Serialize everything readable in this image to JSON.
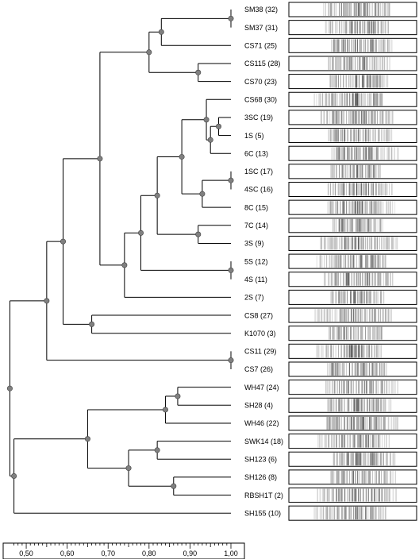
{
  "axis": {
    "ticks": [
      "0,50",
      "0,60",
      "0,70",
      "0,80",
      "0,90",
      "1,00"
    ],
    "tick_values": [
      0.5,
      0.6,
      0.7,
      0.8,
      0.9,
      1.0
    ],
    "range": [
      0.465,
      1.0
    ]
  },
  "leaves": [
    "SM38 (32)",
    "SM37 (31)",
    "CS71 (25)",
    "CS115 (28)",
    "CS70 (23)",
    "CS68 (30)",
    "3SC (19)",
    "1S (5)",
    "6C (13)",
    "1SC (17)",
    "4SC (16)",
    "8C (15)",
    "7C (14)",
    "3S (9)",
    "5S (12)",
    "4S (11)",
    "2S (7)",
    "CS8 (27)",
    "K1070 (3)",
    "CS11 (29)",
    "CS7 (26)",
    "WH47 (24)",
    "SH28 (4)",
    "WH46 (22)",
    "SWK14 (18)",
    "SH123 (6)",
    "SH126 (8)",
    "RBSH1T (2)",
    "SH155 (10)"
  ],
  "clusters": [
    {
      "id": "n1",
      "sim": 1.0,
      "children": [
        "L0",
        "L1"
      ]
    },
    {
      "id": "n2",
      "sim": 0.83,
      "children": [
        "n1",
        "L2"
      ]
    },
    {
      "id": "n3",
      "sim": 0.92,
      "children": [
        "L3",
        "L4"
      ]
    },
    {
      "id": "n4",
      "sim": 0.8,
      "children": [
        "n2",
        "n3"
      ]
    },
    {
      "id": "n5",
      "sim": 0.97,
      "children": [
        "L6",
        "L7"
      ]
    },
    {
      "id": "n6",
      "sim": 0.95,
      "children": [
        "n5",
        "L8"
      ]
    },
    {
      "id": "n7",
      "sim": 0.94,
      "children": [
        "L5",
        "n6"
      ]
    },
    {
      "id": "n8",
      "sim": 1.0,
      "children": [
        "L9",
        "L10"
      ]
    },
    {
      "id": "n9",
      "sim": 0.93,
      "children": [
        "n8",
        "L11"
      ]
    },
    {
      "id": "n10",
      "sim": 0.88,
      "children": [
        "n7",
        "n9"
      ]
    },
    {
      "id": "n11",
      "sim": 0.92,
      "children": [
        "L12",
        "L13"
      ]
    },
    {
      "id": "n12",
      "sim": 0.82,
      "children": [
        "n10",
        "n11"
      ]
    },
    {
      "id": "n13",
      "sim": 1.0,
      "children": [
        "L14",
        "L15"
      ]
    },
    {
      "id": "n14",
      "sim": 0.78,
      "children": [
        "n12",
        "n13"
      ]
    },
    {
      "id": "n15",
      "sim": 0.74,
      "children": [
        "n14",
        "L16"
      ]
    },
    {
      "id": "n16",
      "sim": 0.68,
      "children": [
        "n4",
        "n15"
      ]
    },
    {
      "id": "n17",
      "sim": 0.66,
      "children": [
        "L17",
        "L18"
      ]
    },
    {
      "id": "n18",
      "sim": 0.59,
      "children": [
        "n16",
        "n17"
      ]
    },
    {
      "id": "n19",
      "sim": 1.0,
      "children": [
        "L19",
        "L20"
      ]
    },
    {
      "id": "n20",
      "sim": 0.55,
      "children": [
        "n18",
        "n19"
      ]
    },
    {
      "id": "n21",
      "sim": 0.87,
      "children": [
        "L21",
        "L22"
      ]
    },
    {
      "id": "n22",
      "sim": 0.84,
      "children": [
        "n21",
        "L23"
      ]
    },
    {
      "id": "n23",
      "sim": 0.82,
      "children": [
        "L24",
        "L25"
      ]
    },
    {
      "id": "n24",
      "sim": 0.86,
      "children": [
        "L26",
        "L27"
      ]
    },
    {
      "id": "n25",
      "sim": 0.75,
      "children": [
        "n23",
        "n24"
      ]
    },
    {
      "id": "n26",
      "sim": 0.65,
      "children": [
        "n22",
        "n25"
      ]
    },
    {
      "id": "n27",
      "sim": 0.47,
      "children": [
        "n26",
        "L28"
      ]
    },
    {
      "id": "n28",
      "sim": 0.46,
      "children": [
        "n20",
        "n27"
      ]
    }
  ],
  "colors": {
    "line": "#000000",
    "node": "#808080",
    "lane_bg": "#ffffff",
    "band": "#1a1a1a"
  }
}
